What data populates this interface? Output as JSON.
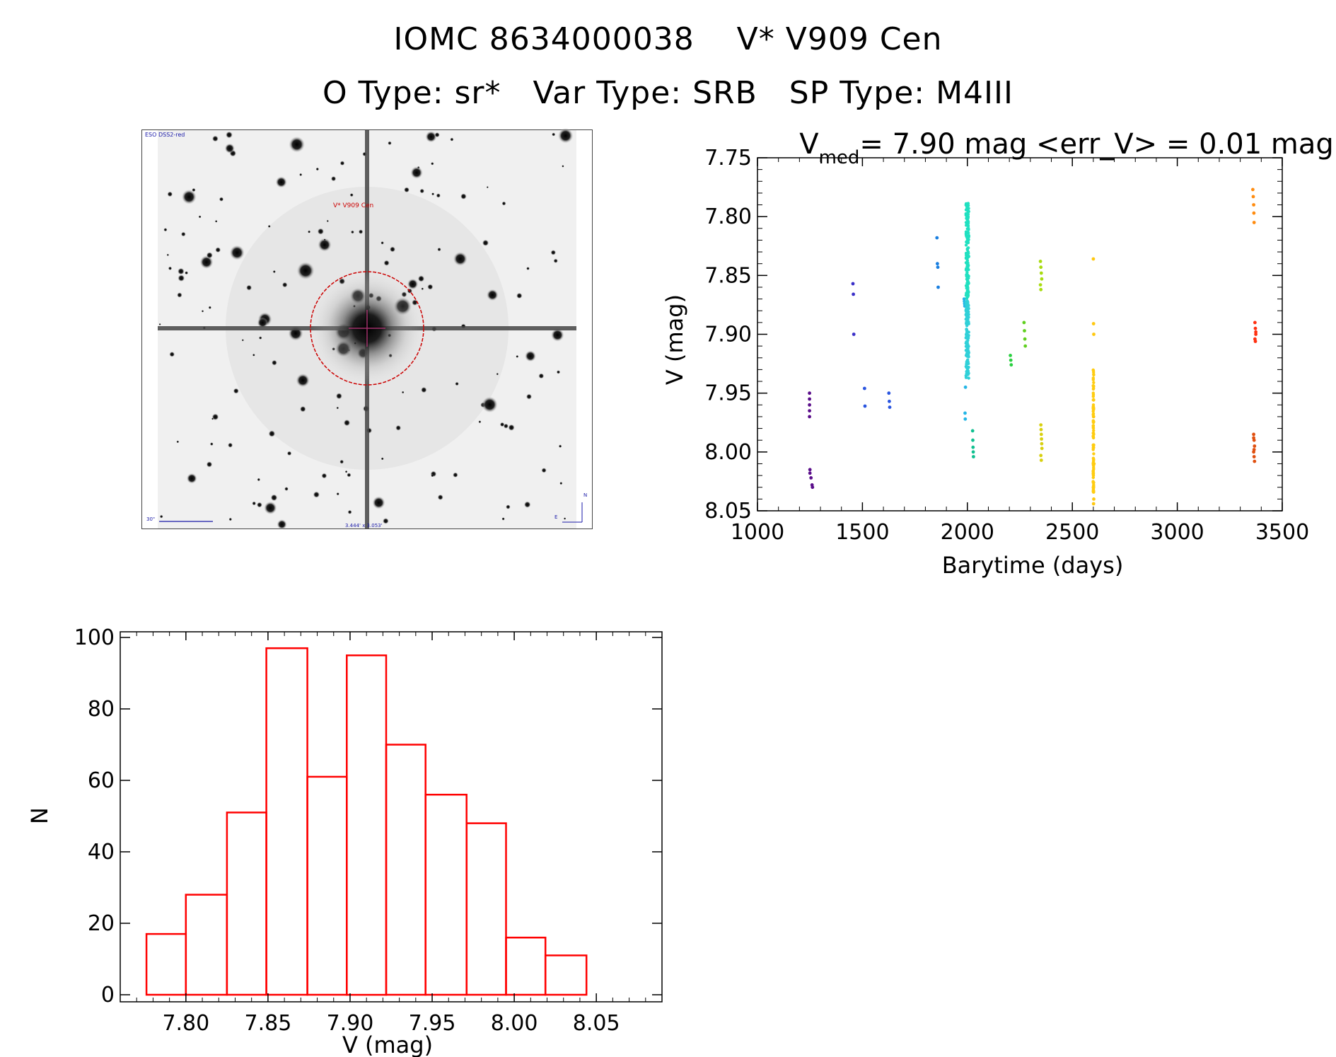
{
  "header": {
    "ids": [
      "IOMC 8634000038",
      "V* V909 Cen"
    ],
    "types": [
      "O Type: sr*",
      "Var Type: SRB",
      "SP Type: M4III"
    ]
  },
  "finder_image": {
    "survey_label": "ESO DSS2-red",
    "target_label": "V* V909 Cen",
    "scale_label": "30\"",
    "fov_label": "3.444' x 3.053'",
    "compass_north": "N",
    "compass_east": "E",
    "colors": {
      "target": "#cc0000",
      "annotation": "#1a1aa8"
    }
  },
  "colors": {
    "histogram": "#ff0000",
    "axis": "#000000"
  },
  "chart_data": [
    {
      "type": "scatter",
      "title_prefix": "V",
      "title_sub": "med",
      "title_suffix": "= 7.90 mag <err_V> = 0.01 mag",
      "xlabel": "Barytime (days)",
      "ylabel": "V (mag)",
      "xlim": [
        1000,
        3500
      ],
      "ylim": [
        8.05,
        7.75
      ],
      "y_inverted": true,
      "xticks": [
        "1000",
        "1500",
        "2000",
        "2500",
        "3000",
        "3500"
      ],
      "yticks": [
        "7.75",
        "7.80",
        "7.85",
        "7.90",
        "7.95",
        "8.00",
        "8.05"
      ],
      "grid": false,
      "series": [
        {
          "color": "#5a0d8a",
          "x": [
            1248,
            1248,
            1248,
            1248,
            1248,
            1250,
            1250,
            1255,
            1260,
            1262
          ],
          "y": [
            7.95,
            7.955,
            7.96,
            7.965,
            7.97,
            8.015,
            8.018,
            8.022,
            8.028,
            8.03
          ]
        },
        {
          "color": "#3a2fc8",
          "x": [
            1455,
            1457,
            1459
          ],
          "y": [
            7.857,
            7.866,
            7.9
          ]
        },
        {
          "color": "#2a55e0",
          "x": [
            1510,
            1512,
            1626,
            1628,
            1630
          ],
          "y": [
            7.946,
            7.961,
            7.95,
            7.957,
            7.962
          ]
        },
        {
          "color": "#1a7fe0",
          "x": [
            1855,
            1857,
            1859,
            1861
          ],
          "y": [
            7.818,
            7.84,
            7.843,
            7.86
          ]
        },
        {
          "color": "#25b6e6",
          "x": [
            1985,
            1986,
            1987,
            1988,
            1989,
            1990,
            1991
          ],
          "y": [
            7.87,
            7.872,
            7.874,
            7.876,
            7.967,
            7.972,
            7.945
          ]
        },
        {
          "color": "#10c090",
          "x": [
            2025,
            2026,
            2027,
            2028,
            2029
          ],
          "y": [
            7.982,
            7.99,
            7.996,
            8.0,
            8.004
          ]
        },
        {
          "color": "#2ad040",
          "x": [
            2205,
            2207,
            2209
          ],
          "y": [
            7.918,
            7.922,
            7.926
          ]
        },
        {
          "color": "#60d020",
          "x": [
            2270,
            2272,
            2274,
            2276
          ],
          "y": [
            7.89,
            7.897,
            7.904,
            7.91
          ]
        },
        {
          "color": "#a8dc10",
          "x": [
            2348,
            2350,
            2352,
            2354,
            2348,
            2350
          ],
          "y": [
            7.838,
            7.843,
            7.848,
            7.853,
            7.858,
            7.862
          ]
        },
        {
          "color": "#d8d010",
          "x": [
            2350,
            2351,
            2352,
            2353,
            2354,
            2355,
            2350,
            2352
          ],
          "y": [
            7.977,
            7.981,
            7.985,
            7.989,
            7.993,
            7.997,
            8.003,
            8.007
          ]
        },
        {
          "color": "#ffc810",
          "x": [
            2600,
            2601,
            2602,
            2603,
            2600,
            2601,
            2600,
            2601,
            2602,
            2601,
            2600,
            2601
          ],
          "y": [
            7.836,
            7.891,
            7.9,
            8.01,
            8.018,
            8.026,
            8.03,
            8.034,
            8.04,
            8.044,
            7.984,
            7.97
          ]
        },
        {
          "color": "#ff8c10",
          "x": [
            3360,
            3362,
            3364,
            3365,
            3366
          ],
          "y": [
            7.777,
            7.783,
            7.79,
            7.797,
            7.805
          ]
        },
        {
          "color": "#ff3010",
          "x": [
            3370,
            3372,
            3374,
            3370,
            3372,
            3374
          ],
          "y": [
            7.89,
            7.895,
            7.9,
            7.904,
            7.906,
            7.898
          ]
        },
        {
          "color": "#e05010",
          "x": [
            3364,
            3366,
            3368,
            3364,
            3366,
            3368,
            3364,
            3366
          ],
          "y": [
            7.985,
            7.99,
            7.995,
            8.0,
            8.004,
            8.008,
            7.988,
            7.998
          ]
        }
      ]
    },
    {
      "type": "bar",
      "subtype": "histogram",
      "xlabel": "V (mag)",
      "ylabel": "N",
      "xlim": [
        7.76,
        8.09
      ],
      "ylim": [
        0,
        100
      ],
      "xticks": [
        "7.80",
        "7.85",
        "7.90",
        "7.95",
        "8.00",
        "8.05"
      ],
      "yticks": [
        "0",
        "20",
        "40",
        "60",
        "80",
        "100"
      ],
      "bin_edges": [
        7.776,
        7.8,
        7.825,
        7.849,
        7.874,
        7.898,
        7.922,
        7.946,
        7.971,
        7.995,
        8.019,
        8.044
      ],
      "values": [
        17,
        28,
        51,
        97,
        61,
        95,
        70,
        56,
        48,
        16,
        11
      ]
    }
  ]
}
